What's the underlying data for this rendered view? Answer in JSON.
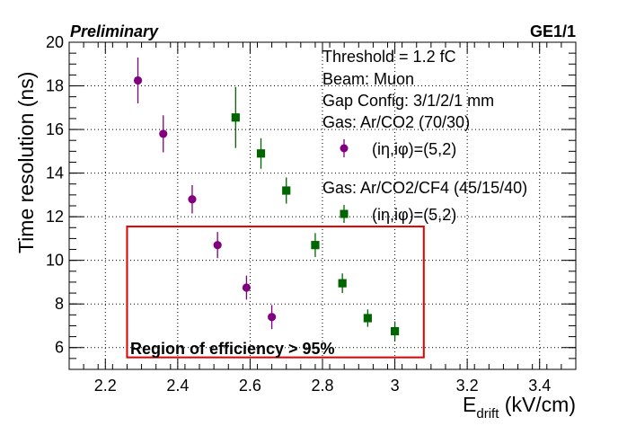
{
  "chart_data": {
    "type": "scatter",
    "header_left": "Preliminary",
    "header_right": "GE1/1",
    "xlabel_main": "E",
    "xlabel_sub": "drift",
    "xlabel_unit": " (kV/cm)",
    "ylabel": "Time resolution (ns)",
    "xlim": [
      2.1,
      3.5
    ],
    "ylim": [
      5,
      20
    ],
    "xticks": [
      "2.2",
      "2.4",
      "2.6",
      "2.8",
      "3",
      "3.2",
      "3.4"
    ],
    "yticks": [
      "6",
      "8",
      "10",
      "12",
      "14",
      "16",
      "18",
      "20"
    ],
    "grid": true,
    "info_lines": [
      "Threshold = 1.2 fC",
      "Beam: Muon",
      "Gap Config: 3/1/2/1 mm"
    ],
    "series": [
      {
        "gas_label": "Gas: Ar/CO2 (70/30)",
        "name": "(iη,iφ)=(5,2)",
        "color": "#800080",
        "marker": "circle",
        "x": [
          2.29,
          2.36,
          2.44,
          2.51,
          2.59,
          2.66
        ],
        "y": [
          18.25,
          15.8,
          12.8,
          10.7,
          8.75,
          7.4
        ],
        "err": [
          1.05,
          0.85,
          0.65,
          0.6,
          0.55,
          0.55
        ]
      },
      {
        "gas_label": "Gas: Ar/CO2/CF4 (45/15/40)",
        "name": "(iη,iφ)=(5,2)",
        "color": "#006400",
        "marker": "square",
        "x": [
          2.56,
          2.63,
          2.7,
          2.78,
          2.855,
          2.925,
          3.0
        ],
        "y": [
          16.55,
          14.9,
          13.2,
          10.7,
          8.95,
          7.35,
          6.75
        ],
        "err": [
          1.4,
          0.7,
          0.6,
          0.55,
          0.45,
          0.4,
          0.45
        ]
      }
    ],
    "region": {
      "label": "Region of efficiency > 95%",
      "x": [
        2.26,
        3.08
      ],
      "y": [
        5.55,
        11.55
      ],
      "color": "#e00000"
    }
  }
}
